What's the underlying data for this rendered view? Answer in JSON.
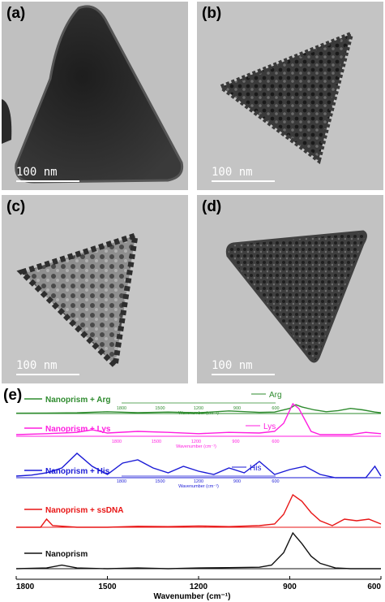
{
  "panels": [
    {
      "label": "(a)",
      "scale_bar": "100 nm"
    },
    {
      "label": "(b)",
      "scale_bar": "100 nm"
    },
    {
      "label": "(c)",
      "scale_bar": "100 nm"
    },
    {
      "label": "(d)",
      "scale_bar": "100 nm"
    }
  ],
  "spectra_panel_label": "(e)",
  "chart_data": {
    "type": "line",
    "title": "",
    "xlabel": "Wavenumber (cm⁻¹)",
    "ylabel": "",
    "xlim": [
      1800,
      600
    ],
    "x_ticks": [
      "1800",
      "1500",
      "1200",
      "900",
      "600"
    ],
    "grid": false,
    "series": [
      {
        "name": "Nanoprism + Arg",
        "color": "#2e8b2e",
        "points": [
          [
            1800,
            0.02
          ],
          [
            1700,
            0.03
          ],
          [
            1600,
            0.05
          ],
          [
            1500,
            0.12
          ],
          [
            1400,
            0.06
          ],
          [
            1300,
            0.1
          ],
          [
            1200,
            0.05
          ],
          [
            1100,
            0.18
          ],
          [
            1000,
            0.08
          ],
          [
            950,
            0.1
          ],
          [
            900,
            0.35
          ],
          [
            880,
            0.6
          ],
          [
            860,
            0.45
          ],
          [
            820,
            0.25
          ],
          [
            780,
            0.12
          ],
          [
            740,
            0.2
          ],
          [
            700,
            0.35
          ],
          [
            660,
            0.25
          ],
          [
            620,
            0.1
          ],
          [
            600,
            0.05
          ]
        ]
      },
      {
        "name": "Nanoprism + Lys",
        "color": "#ff1ee0",
        "points": [
          [
            1800,
            0.05
          ],
          [
            1700,
            0.08
          ],
          [
            1600,
            0.12
          ],
          [
            1550,
            0.2
          ],
          [
            1500,
            0.1
          ],
          [
            1400,
            0.15
          ],
          [
            1300,
            0.12
          ],
          [
            1200,
            0.08
          ],
          [
            1100,
            0.12
          ],
          [
            1000,
            0.1
          ],
          [
            950,
            0.15
          ],
          [
            920,
            0.4
          ],
          [
            890,
            1.0
          ],
          [
            870,
            0.85
          ],
          [
            850,
            0.5
          ],
          [
            830,
            0.15
          ],
          [
            800,
            0.05
          ],
          [
            700,
            0.05
          ],
          [
            650,
            0.12
          ],
          [
            600,
            0.08
          ]
        ]
      },
      {
        "name": "Nanoprism + His",
        "color": "#1a1ad6",
        "points": [
          [
            1800,
            0.05
          ],
          [
            1750,
            0.08
          ],
          [
            1700,
            0.15
          ],
          [
            1650,
            0.3
          ],
          [
            1600,
            0.75
          ],
          [
            1550,
            0.35
          ],
          [
            1500,
            0.1
          ],
          [
            1450,
            0.45
          ],
          [
            1400,
            0.55
          ],
          [
            1350,
            0.3
          ],
          [
            1300,
            0.15
          ],
          [
            1250,
            0.35
          ],
          [
            1200,
            0.2
          ],
          [
            1150,
            0.1
          ],
          [
            1100,
            0.3
          ],
          [
            1050,
            0.15
          ],
          [
            1000,
            0.5
          ],
          [
            950,
            0.1
          ],
          [
            900,
            0.25
          ],
          [
            850,
            0.35
          ],
          [
            800,
            0.1
          ],
          [
            750,
            0.0
          ],
          [
            700,
            0.0
          ],
          [
            650,
            0.0
          ],
          [
            620,
            0.35
          ],
          [
            600,
            0.05
          ]
        ]
      },
      {
        "name": "Nanoprism + ssDNA",
        "color": "#e81515",
        "points": [
          [
            1800,
            0.0
          ],
          [
            1720,
            0.0
          ],
          [
            1700,
            0.25
          ],
          [
            1680,
            0.05
          ],
          [
            1600,
            0.0
          ],
          [
            1500,
            0.0
          ],
          [
            1400,
            0.03
          ],
          [
            1300,
            0.02
          ],
          [
            1200,
            0.04
          ],
          [
            1100,
            0.02
          ],
          [
            1000,
            0.05
          ],
          [
            950,
            0.1
          ],
          [
            920,
            0.4
          ],
          [
            890,
            1.0
          ],
          [
            860,
            0.8
          ],
          [
            830,
            0.45
          ],
          [
            800,
            0.2
          ],
          [
            760,
            0.05
          ],
          [
            720,
            0.25
          ],
          [
            680,
            0.2
          ],
          [
            640,
            0.25
          ],
          [
            600,
            0.1
          ]
        ]
      },
      {
        "name": "Nanoprism",
        "color": "#111111",
        "points": [
          [
            1800,
            0.0
          ],
          [
            1700,
            0.02
          ],
          [
            1650,
            0.1
          ],
          [
            1600,
            0.02
          ],
          [
            1500,
            0.0
          ],
          [
            1400,
            0.02
          ],
          [
            1300,
            0.0
          ],
          [
            1200,
            0.02
          ],
          [
            1100,
            0.03
          ],
          [
            1000,
            0.04
          ],
          [
            960,
            0.1
          ],
          [
            920,
            0.45
          ],
          [
            890,
            1.0
          ],
          [
            860,
            0.7
          ],
          [
            830,
            0.35
          ],
          [
            800,
            0.15
          ],
          [
            750,
            0.02
          ],
          [
            700,
            0.0
          ],
          [
            600,
            0.0
          ]
        ]
      }
    ],
    "insets": [
      {
        "name": "Arg",
        "color": "#2e8b2e",
        "x_ticks": [
          "1800",
          "1500",
          "1200",
          "900",
          "600"
        ],
        "xlabel": "Wavenumber (cm⁻¹)"
      },
      {
        "name": "Lys",
        "color": "#ff1ee0",
        "x_ticks": [
          "1800",
          "1500",
          "1200",
          "900",
          "600"
        ],
        "xlabel": "Wavenumber (cm⁻¹)"
      },
      {
        "name": "His",
        "color": "#1a1ad6",
        "x_ticks": [
          "1800",
          "1500",
          "1200",
          "900",
          "600"
        ],
        "xlabel": "Wavenumber (cm⁻¹)"
      }
    ]
  }
}
